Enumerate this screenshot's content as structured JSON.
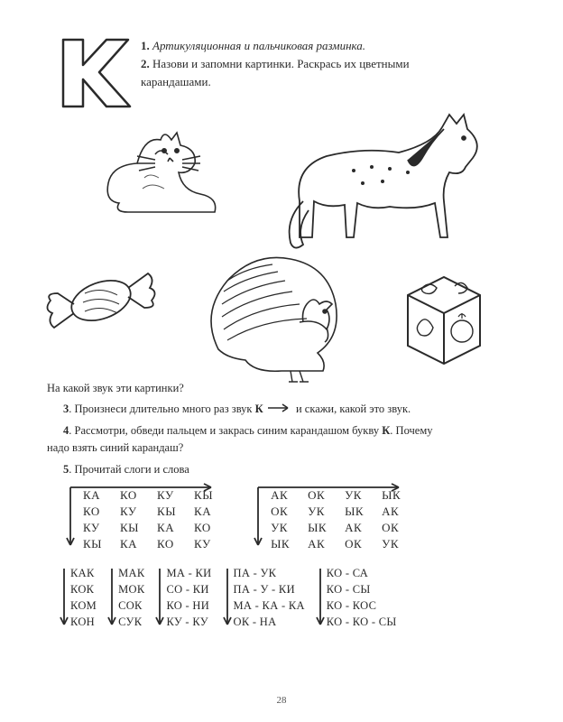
{
  "colors": {
    "stroke": "#2a2a2a",
    "bg": "#ffffff"
  },
  "letter": "К",
  "instructions": {
    "n1": "1.",
    "t1": "Артикуляционная и пальчиковая разминка.",
    "n2": "2.",
    "t2a": "Назови и запомни картинки. Раскрась их цветными",
    "t2b": "карандашами."
  },
  "illu_names": {
    "cat": "кошка",
    "horse": "конь",
    "candy": "конфета",
    "turkey": "индюк",
    "cube": "кубик"
  },
  "q_after_illu": "На какой звук эти картинки?",
  "line3": {
    "n": "3",
    "before": ". Произнеси длительно много раз звук ",
    "bold": "К",
    "arrow": "→",
    "after": "  и скажи, какой это звук."
  },
  "line4": {
    "n": "4",
    "a": ". Рассмотри, обведи пальцем и закрась синим карандашом букву ",
    "bold": "К",
    "b": ". Почему",
    "c": "надо взять синий карандаш?"
  },
  "line5": {
    "n": "5",
    "t": ". Прочитай слоги и слова"
  },
  "grids": {
    "left": [
      [
        "КА",
        "КО",
        "КУ",
        "КЫ"
      ],
      [
        "КО",
        "КУ",
        "КЫ",
        "КА"
      ],
      [
        "КУ",
        "КЫ",
        "КА",
        "КО"
      ],
      [
        "КЫ",
        "КА",
        "КО",
        "КУ"
      ]
    ],
    "right": [
      [
        "АК",
        "ОК",
        "УК",
        "ЫК"
      ],
      [
        "ОК",
        "УК",
        "ЫК",
        "АК"
      ],
      [
        "УК",
        "ЫК",
        "АК",
        "ОК"
      ],
      [
        "ЫК",
        "АК",
        "ОК",
        "УК"
      ]
    ]
  },
  "cols": {
    "c1": [
      "КАК",
      "КОК",
      "КОМ",
      "КОН"
    ],
    "c2": [
      "МАК",
      "МОК",
      "СОК",
      "СУК"
    ],
    "c3": [
      "МА - КИ",
      "СО - КИ",
      "КО - НИ",
      "КУ - КУ"
    ],
    "c4": [
      "ПА - УК",
      "ПА - У - КИ",
      "МА - КА - КА",
      "ОК - НА"
    ],
    "c5": [
      "КО - СА",
      "КО - СЫ",
      "КО - КОС",
      "КО - КО - СЫ"
    ]
  },
  "page_number": "28"
}
